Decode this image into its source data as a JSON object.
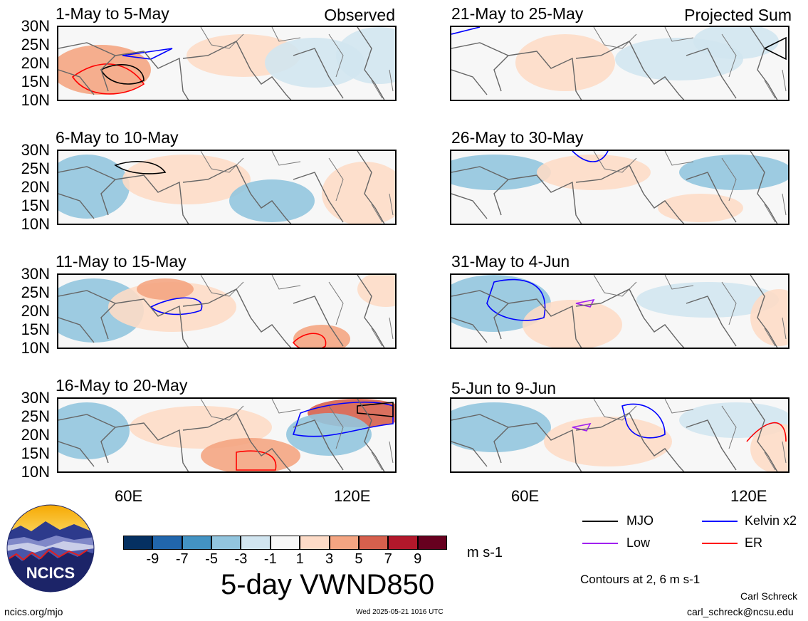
{
  "panels_left": [
    {
      "title": "1-May to 5-May",
      "tag": "Observed"
    },
    {
      "title": "6-May to 10-May",
      "tag": ""
    },
    {
      "title": "11-May to 15-May",
      "tag": ""
    },
    {
      "title": "16-May to 20-May",
      "tag": ""
    }
  ],
  "panels_right": [
    {
      "title": "21-May to 25-May",
      "tag": "Projected Sum"
    },
    {
      "title": "26-May to 30-May",
      "tag": ""
    },
    {
      "title": "31-May to 4-Jun",
      "tag": ""
    },
    {
      "title": "5-Jun to 9-Jun",
      "tag": ""
    }
  ],
  "lat_labels": [
    "30N",
    "25N",
    "20N",
    "15N",
    "10N"
  ],
  "lon_labels": [
    "60E",
    "120E"
  ],
  "colorbar": {
    "ticks": [
      "-9",
      "-7",
      "-5",
      "-3",
      "-1",
      "1",
      "3",
      "5",
      "7",
      "9"
    ],
    "colors": [
      "#053061",
      "#2166ac",
      "#4393c3",
      "#92c5de",
      "#d1e5f0",
      "#f7f7f7",
      "#fddbc7",
      "#f4a582",
      "#d6604d",
      "#b2182b",
      "#67001f"
    ],
    "units": "m s-1"
  },
  "main_title": "5-day VWND850",
  "legend": {
    "items": [
      {
        "label": "MJO",
        "color": "#000000"
      },
      {
        "label": "Kelvin x2",
        "color": "#0000ff"
      },
      {
        "label": "Low",
        "color": "#a020f0"
      },
      {
        "label": "ER",
        "color": "#ff0000"
      }
    ],
    "contours_note": "Contours at 2, 6 m s-1"
  },
  "logo": {
    "text": "NCICS"
  },
  "footer": {
    "url": "ncics.org/mjo",
    "timestamp": "Wed 2025-05-21 1016 UTC",
    "author": "Carl Schreck",
    "email": "carl_schreck@ncsu.edu"
  }
}
